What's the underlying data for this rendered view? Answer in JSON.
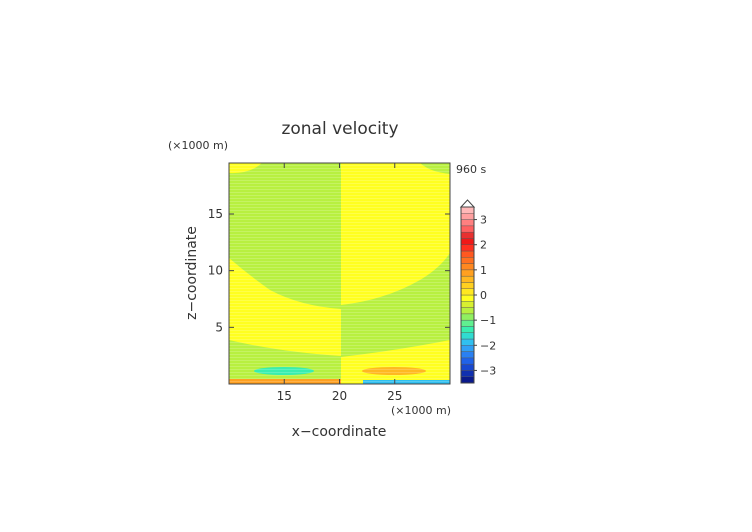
{
  "chart_data": {
    "type": "heatmap",
    "title": "zonal velocity",
    "time_label": "960 s",
    "xlabel": "x−coordinate",
    "ylabel": "z−coordinate",
    "x_unit": "(×1000 m)",
    "y_unit": "(×1000 m)",
    "xlim": [
      10,
      30
    ],
    "ylim": [
      0,
      19.5
    ],
    "x_ticks": [
      15,
      20,
      25
    ],
    "y_ticks": [
      5,
      10,
      15
    ],
    "colorbar": {
      "levels": [
        -3.5,
        -3.25,
        -3.0,
        -2.75,
        -2.5,
        -2.25,
        -2.0,
        -1.75,
        -1.5,
        -1.25,
        -1.0,
        -0.75,
        -0.5,
        -0.25,
        0.0,
        0.25,
        0.5,
        0.75,
        1.0,
        1.25,
        1.5,
        1.75,
        2.0,
        2.25,
        2.5,
        2.75,
        3.0,
        3.25,
        3.5
      ],
      "tick_labels": [
        "3",
        "2",
        "1",
        "0",
        "−1",
        "−2",
        "−3"
      ],
      "tick_values": [
        3,
        2,
        1,
        0,
        -1,
        -2,
        -3
      ],
      "colors": [
        "#0a1a8c",
        "#1030b0",
        "#1848d0",
        "#2062e8",
        "#2a80f2",
        "#30a0f6",
        "#30c0f0",
        "#30dcd0",
        "#38eeb0",
        "#60f090",
        "#90f060",
        "#b8f040",
        "#d8f030",
        "#ffff20",
        "#ffe820",
        "#ffd020",
        "#ffb820",
        "#ffa020",
        "#ff8820",
        "#ff7020",
        "#ff5820",
        "#ff3020",
        "#f01818",
        "#e83030",
        "#ff6060",
        "#ff8080",
        "#ffa0a0",
        "#ffb8b8"
      ],
      "overflow_marker": "triangle-top"
    },
    "regions": [
      {
        "value": 0.1,
        "description": "yellow background (0 to 0.25)"
      },
      {
        "value": -0.1,
        "description": "green bands (-0.25 to 0)"
      },
      {
        "value": -0.8,
        "description": "cyan ellipse near x=15, z=1"
      },
      {
        "value": 0.6,
        "description": "orange ellipse near x=25, z=1"
      },
      {
        "value": -1.2,
        "description": "blue strip near bottom, x 23-30"
      },
      {
        "value": 0.8,
        "description": "orange strip near bottom, x 10-20"
      }
    ]
  }
}
